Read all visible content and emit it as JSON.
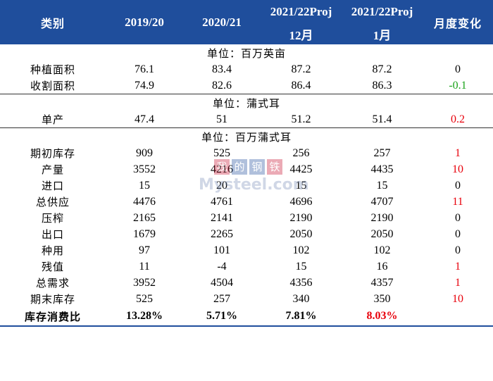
{
  "header": {
    "category": "类别",
    "col1": "2019/20",
    "col2": "2020/21",
    "col3": "2021/22Proj",
    "col3_sub": "12月",
    "col4": "2021/22Proj",
    "col4_sub": "1月",
    "change": "月度变化"
  },
  "unit1": "单位：百万英亩",
  "unit2": "单位：蒲式耳",
  "unit3": "单位：百万蒲式耳",
  "rows": [
    {
      "label": "种植面积",
      "v1": "76.1",
      "v2": "83.4",
      "v3": "87.2",
      "v4": "87.2",
      "chg": "0"
    },
    {
      "label": "收割面积",
      "v1": "74.9",
      "v2": "82.6",
      "v3": "86.4",
      "v4": "86.3",
      "chg": "-0.1"
    },
    {
      "label": "单产",
      "v1": "47.4",
      "v2": "51",
      "v3": "51.2",
      "v4": "51.4",
      "chg": "0.2"
    },
    {
      "label": "期初库存",
      "v1": "909",
      "v2": "525",
      "v3": "256",
      "v4": "257",
      "chg": "1"
    },
    {
      "label": "产量",
      "v1": "3552",
      "v2": "4216",
      "v3": "4425",
      "v4": "4435",
      "chg": "10"
    },
    {
      "label": "进口",
      "v1": "15",
      "v2": "20",
      "v3": "15",
      "v4": "15",
      "chg": "0"
    },
    {
      "label": "总供应",
      "v1": "4476",
      "v2": "4761",
      "v3": "4696",
      "v4": "4707",
      "chg": "11"
    },
    {
      "label": "压榨",
      "v1": "2165",
      "v2": "2141",
      "v3": "2190",
      "v4": "2190",
      "chg": "0"
    },
    {
      "label": "出口",
      "v1": "1679",
      "v2": "2265",
      "v3": "2050",
      "v4": "2050",
      "chg": "0"
    },
    {
      "label": "种用",
      "v1": "97",
      "v2": "101",
      "v3": "102",
      "v4": "102",
      "chg": "0"
    },
    {
      "label": "残值",
      "v1": "11",
      "v2": "-4",
      "v3": "15",
      "v4": "16",
      "chg": "1"
    },
    {
      "label": "总需求",
      "v1": "3952",
      "v2": "4504",
      "v3": "4356",
      "v4": "4357",
      "chg": "1"
    },
    {
      "label": "期末库存",
      "v1": "525",
      "v2": "257",
      "v3": "340",
      "v4": "350",
      "chg": "10"
    },
    {
      "label": "库存消费比",
      "v1": "13.28%",
      "v2": "5.71%",
      "v3": "7.81%",
      "v4": "8.03%",
      "chg": ""
    }
  ],
  "watermark": {
    "cn1": "我",
    "cn2": "的",
    "cn3": "钢",
    "cn4": "铁",
    "en": "Mysteel.com"
  },
  "colors": {
    "header_bg": "#1f4e9c",
    "red": "#e8000b",
    "green": "#1aa31a"
  }
}
